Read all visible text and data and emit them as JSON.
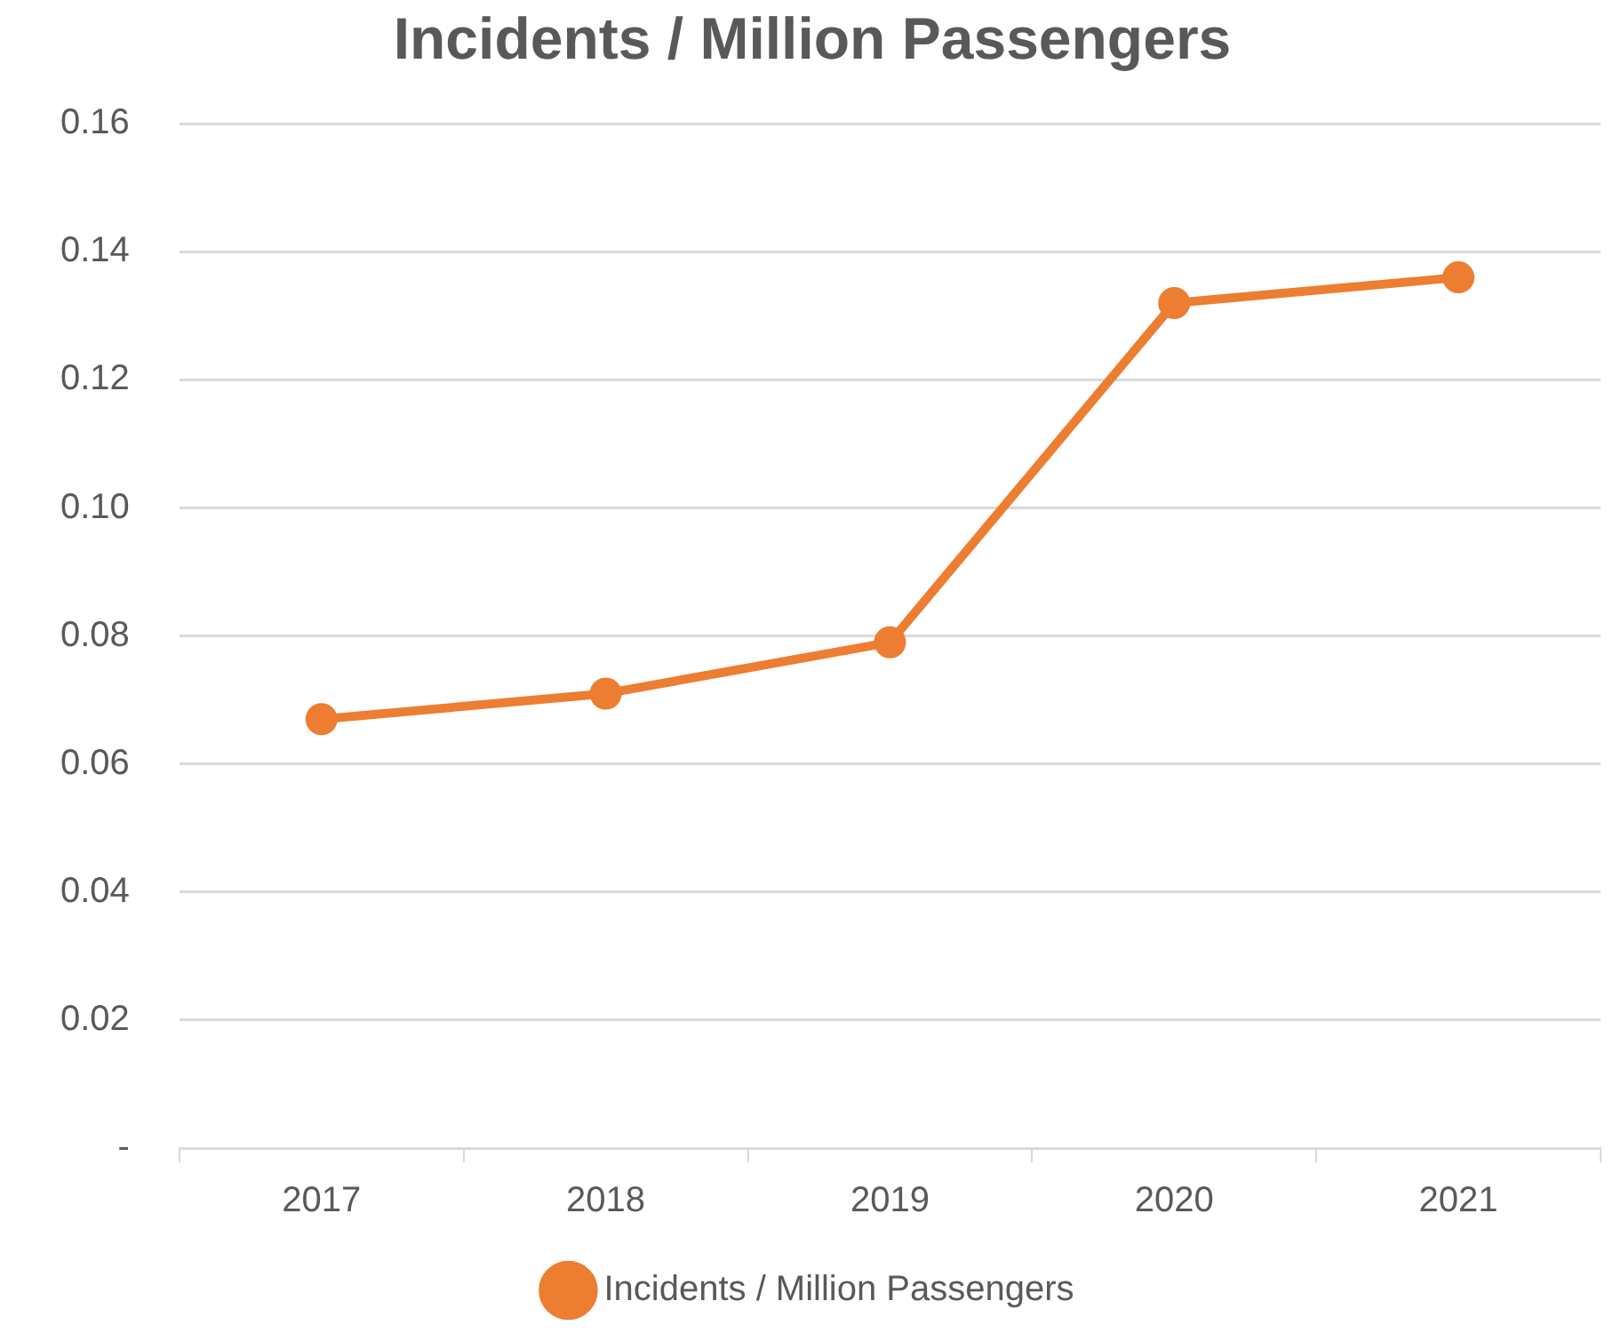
{
  "chart_data": {
    "type": "line",
    "title": "Incidents / Million Passengers",
    "categories": [
      "2017",
      "2018",
      "2019",
      "2020",
      "2021"
    ],
    "series": [
      {
        "name": "Incidents / Million Passengers",
        "color": "#ed7d31",
        "values": [
          0.067,
          0.071,
          0.079,
          0.132,
          0.136
        ]
      }
    ],
    "ylim": [
      0,
      0.16
    ],
    "yticks": [
      {
        "value": 0,
        "label": "-"
      },
      {
        "value": 0.02,
        "label": "0.02"
      },
      {
        "value": 0.04,
        "label": "0.04"
      },
      {
        "value": 0.06,
        "label": "0.06"
      },
      {
        "value": 0.08,
        "label": "0.08"
      },
      {
        "value": 0.1,
        "label": "0.10"
      },
      {
        "value": 0.12,
        "label": "0.12"
      },
      {
        "value": 0.14,
        "label": "0.14"
      },
      {
        "value": 0.16,
        "label": "0.16"
      }
    ],
    "grid": "y",
    "legend": "bottom",
    "marker": "circle",
    "line_style": "solid"
  }
}
